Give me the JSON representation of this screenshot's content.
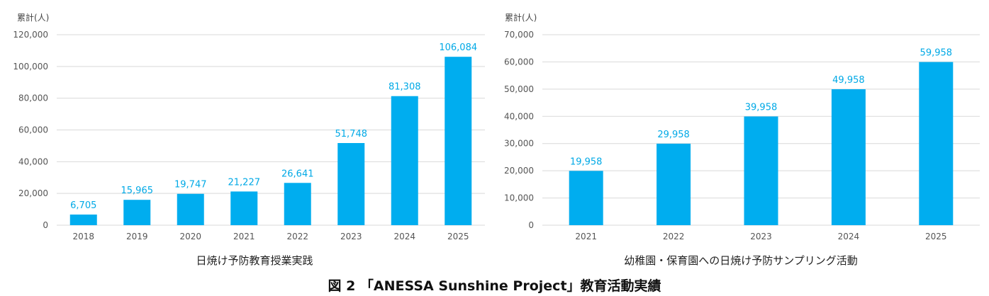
{
  "caption": "図 2 「ANESSA Sunshine Project」教育活動実績",
  "chart_data": [
    {
      "type": "bar",
      "unit_label": "累計(人)",
      "xlabel": "日焼け予防教育授業実践",
      "categories": [
        "2018",
        "2019",
        "2020",
        "2021",
        "2022",
        "2023",
        "2024",
        "2025"
      ],
      "values": [
        6705,
        15965,
        19747,
        21227,
        26641,
        51748,
        81308,
        106084
      ],
      "value_labels": [
        "6,705",
        "15,965",
        "19,747",
        "21,227",
        "26,641",
        "51,748",
        "81,308",
        "106,084"
      ],
      "ylim": [
        0,
        120000
      ],
      "yticks": [
        0,
        20000,
        40000,
        60000,
        80000,
        100000,
        120000
      ],
      "ytick_labels": [
        "0",
        "20,000",
        "40,000",
        "60,000",
        "80,000",
        "100,000",
        "120,000"
      ],
      "grid": true,
      "bar_color": "#00adef",
      "label_color": "#00a9e6"
    },
    {
      "type": "bar",
      "unit_label": "累計(人)",
      "xlabel": "幼稚園・保育園への日焼け予防サンプリング活動",
      "categories": [
        "2021",
        "2022",
        "2023",
        "2024",
        "2025"
      ],
      "values": [
        19958,
        29958,
        39958,
        49958,
        59958
      ],
      "value_labels": [
        "19,958",
        "29,958",
        "39,958",
        "49,958",
        "59,958"
      ],
      "ylim": [
        0,
        70000
      ],
      "yticks": [
        0,
        10000,
        20000,
        30000,
        40000,
        50000,
        60000,
        70000
      ],
      "ytick_labels": [
        "0",
        "10,000",
        "20,000",
        "30,000",
        "40,000",
        "50,000",
        "60,000",
        "70,000"
      ],
      "grid": true,
      "bar_color": "#00adef",
      "label_color": "#00a9e6"
    }
  ]
}
